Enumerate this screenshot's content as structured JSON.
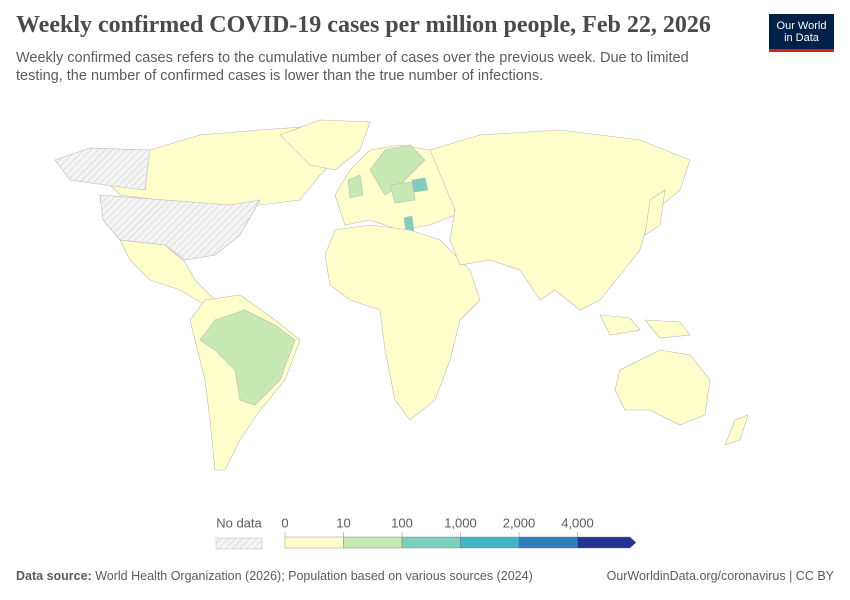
{
  "header": {
    "title": "Weekly confirmed COVID-19 cases per million people, Feb 22, 2026",
    "subtitle": "Weekly confirmed cases refers to the cumulative number of cases over the previous week. Due to limited testing, the number of confirmed cases is lower than the true number of infections.",
    "logo": [
      "Our World",
      "in Data"
    ]
  },
  "legend": {
    "no_data": "No data",
    "colors": [
      "#ffffcc",
      "#c7e9b4",
      "#7fcdbb",
      "#41b6c4",
      "#2c7fb8",
      "#253494"
    ],
    "ticks": [
      0,
      10,
      100,
      {
        "value": 1000,
        "label": "1,000"
      },
      {
        "value": 2000,
        "label": "2,000"
      },
      {
        "value": 4000,
        "label": "4,000"
      }
    ]
  },
  "footer": {
    "source_label": "Data source:",
    "source": "World Health Organization (2026); Population based on various sources (2024)",
    "link": "OurWorldinData.org/coronavirus | CC BY"
  }
}
